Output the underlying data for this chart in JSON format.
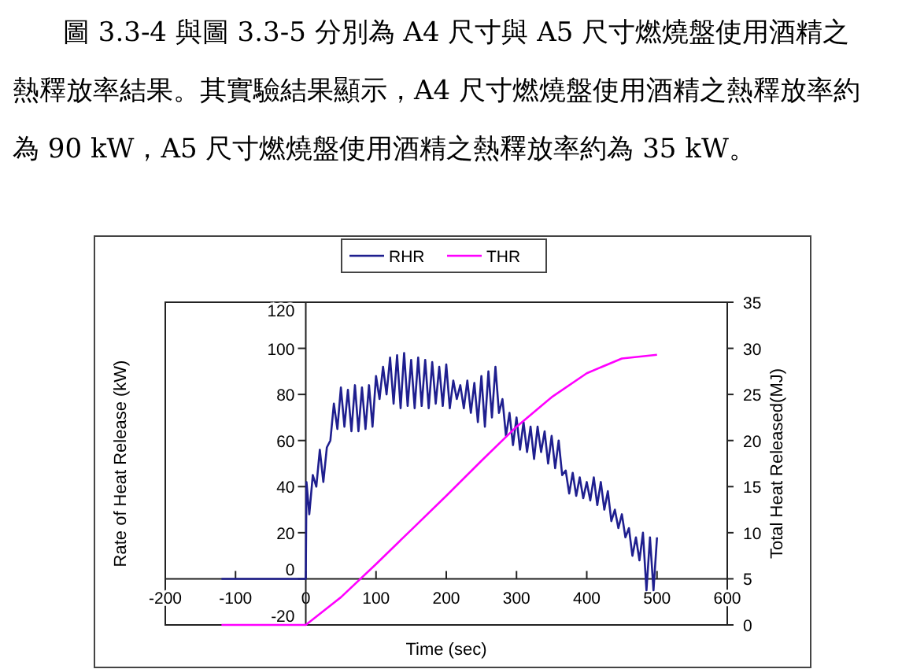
{
  "chart_data": {
    "type": "line",
    "annotations": [
      "圖 3.3-4 與圖 3.3-5 分別為 A4 尺寸與 A5 尺寸燃燒盤使用酒精之熱釋放率結果。其實驗結果顯示，A4 尺寸燃燒盤使用酒精之熱釋放率約為 90 kW，A5 尺寸燃燒盤使用酒精之熱釋放率約為 35 kW。"
    ],
    "xlabel": "Time (sec)",
    "ylabel": "Rate of Heat Release (kW)",
    "y2label": "Total Heat Released(MJ)",
    "xlim": [
      -200,
      600
    ],
    "xticks": [
      -200,
      -100,
      0,
      100,
      200,
      300,
      400,
      500,
      600
    ],
    "ylim": [
      -20,
      120
    ],
    "yticks": [
      -20,
      0,
      20,
      40,
      60,
      80,
      100,
      120
    ],
    "y2lim": [
      0,
      35
    ],
    "y2ticks": [
      0,
      5,
      10,
      15,
      20,
      25,
      30,
      35
    ],
    "legend": "top",
    "grid": false,
    "line_style": "solid",
    "marker": "none",
    "series": [
      {
        "name": "RHR",
        "color": "#1f1f8f",
        "x": [
          -120,
          0,
          1,
          5,
          10,
          15,
          20,
          25,
          30,
          35,
          40,
          45,
          50,
          55,
          60,
          65,
          70,
          75,
          80,
          85,
          90,
          95,
          100,
          105,
          110,
          115,
          120,
          125,
          130,
          135,
          140,
          145,
          150,
          155,
          160,
          165,
          170,
          175,
          180,
          185,
          190,
          195,
          200,
          205,
          210,
          215,
          220,
          225,
          230,
          235,
          240,
          245,
          250,
          255,
          260,
          265,
          270,
          275,
          280,
          285,
          290,
          295,
          300,
          305,
          310,
          315,
          320,
          325,
          330,
          335,
          340,
          345,
          350,
          355,
          360,
          365,
          370,
          375,
          380,
          385,
          390,
          395,
          400,
          405,
          410,
          415,
          420,
          425,
          430,
          435,
          440,
          445,
          450,
          455,
          460,
          465,
          470,
          475,
          480,
          485,
          490,
          495,
          500
        ],
        "values": [
          0,
          0,
          42,
          28,
          45,
          40,
          56,
          42,
          57,
          60,
          76,
          65,
          83,
          66,
          82,
          64,
          84,
          64,
          83,
          65,
          84,
          66,
          88,
          78,
          92,
          80,
          96,
          76,
          97,
          74,
          98,
          75,
          95,
          74,
          96,
          75,
          95,
          74,
          94,
          76,
          92,
          75,
          93,
          74,
          86,
          78,
          84,
          74,
          86,
          72,
          85,
          68,
          88,
          66,
          90,
          70,
          92,
          72,
          78,
          62,
          72,
          58,
          70,
          56,
          68,
          55,
          66,
          52,
          66,
          55,
          64,
          50,
          62,
          48,
          60,
          45,
          47,
          37,
          46,
          36,
          44,
          35,
          42,
          34,
          44,
          32,
          42,
          30,
          38,
          25,
          30,
          22,
          28,
          18,
          22,
          10,
          18,
          8,
          20,
          -5,
          18,
          -5,
          18
        ]
      },
      {
        "name": "THR",
        "color": "#ff00ff",
        "axis": "y2",
        "x": [
          -120,
          0,
          50,
          100,
          150,
          200,
          250,
          300,
          350,
          400,
          450,
          500
        ],
        "values": [
          0,
          0,
          3,
          6.6,
          10.3,
          14,
          17.8,
          21.5,
          24.7,
          27.3,
          28.9,
          29.3
        ]
      }
    ]
  }
}
